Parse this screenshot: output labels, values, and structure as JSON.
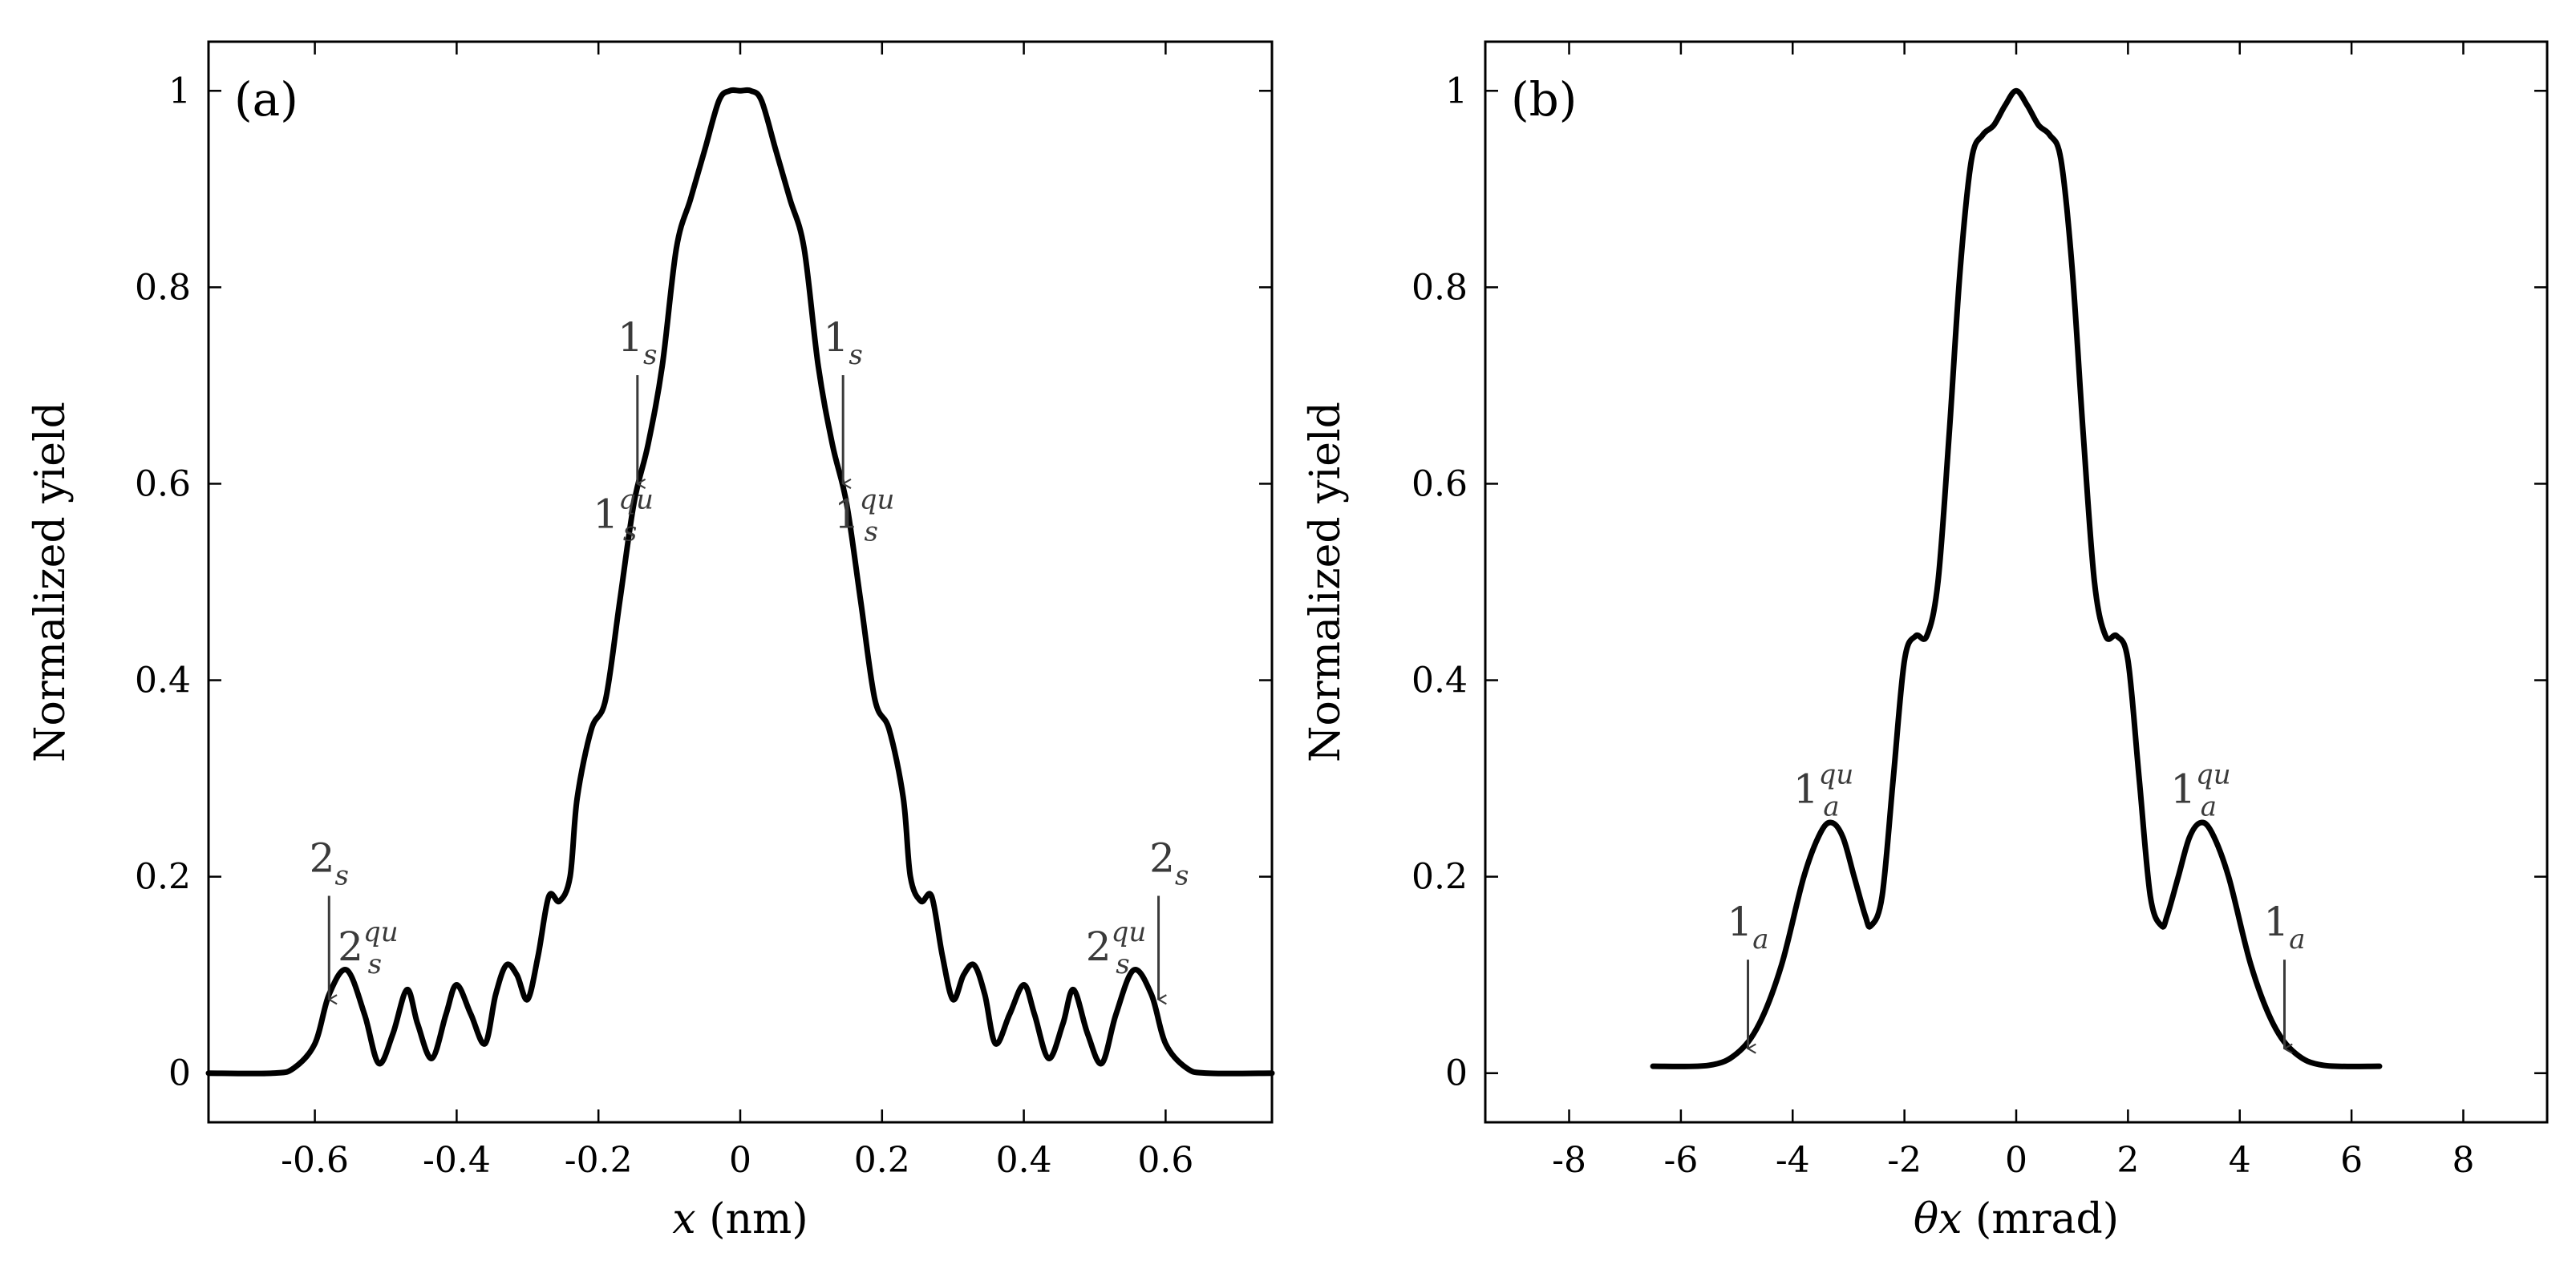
{
  "chart_data": [
    {
      "id": "a",
      "type": "line",
      "panel_label": "(a)",
      "xlabel_var": "x",
      "xlabel_unit": " (nm)",
      "ylabel": "Normalized yield",
      "xlim": [
        -0.75,
        0.75
      ],
      "ylim": [
        -0.05,
        1.05
      ],
      "xticks": [
        -0.6,
        -0.4,
        -0.2,
        0,
        0.2,
        0.4,
        0.6
      ],
      "xtick_labels": [
        "-0.6",
        "-0.4",
        "-0.2",
        "0",
        "0.2",
        "0.4",
        "0.6"
      ],
      "yticks": [
        0,
        0.2,
        0.4,
        0.6,
        0.8,
        1
      ],
      "ytick_labels": [
        "0",
        "0.2",
        "0.4",
        "0.6",
        "0.8",
        "1"
      ],
      "series": [
        {
          "name": "yield",
          "x": [
            -0.75,
            -0.66,
            -0.63,
            -0.6,
            -0.58,
            -0.555,
            -0.53,
            -0.51,
            -0.49,
            -0.47,
            -0.455,
            -0.435,
            -0.415,
            -0.4,
            -0.38,
            -0.36,
            -0.345,
            -0.33,
            -0.315,
            -0.3,
            -0.285,
            -0.27,
            -0.255,
            -0.24,
            -0.23,
            -0.21,
            -0.19,
            -0.17,
            -0.15,
            -0.13,
            -0.11,
            -0.09,
            -0.07,
            -0.05,
            -0.03,
            -0.015,
            0,
            0.015,
            0.03,
            0.05,
            0.07,
            0.09,
            0.11,
            0.13,
            0.15,
            0.17,
            0.19,
            0.21,
            0.23,
            0.24,
            0.255,
            0.27,
            0.285,
            0.3,
            0.315,
            0.33,
            0.345,
            0.36,
            0.38,
            0.4,
            0.415,
            0.435,
            0.455,
            0.47,
            0.49,
            0.51,
            0.53,
            0.555,
            0.58,
            0.6,
            0.63,
            0.66,
            0.75
          ],
          "y": [
            0,
            0,
            0.005,
            0.03,
            0.08,
            0.105,
            0.06,
            0.01,
            0.04,
            0.085,
            0.05,
            0.015,
            0.06,
            0.09,
            0.06,
            0.03,
            0.08,
            0.11,
            0.1,
            0.075,
            0.12,
            0.18,
            0.175,
            0.2,
            0.28,
            0.35,
            0.38,
            0.48,
            0.58,
            0.64,
            0.72,
            0.84,
            0.89,
            0.94,
            0.99,
            1.0,
            1.0,
            1.0,
            0.99,
            0.94,
            0.89,
            0.84,
            0.72,
            0.64,
            0.58,
            0.48,
            0.38,
            0.35,
            0.28,
            0.2,
            0.175,
            0.18,
            0.12,
            0.075,
            0.1,
            0.11,
            0.08,
            0.03,
            0.06,
            0.09,
            0.06,
            0.015,
            0.05,
            0.085,
            0.04,
            0.01,
            0.06,
            0.105,
            0.08,
            0.03,
            0.005,
            0,
            0
          ]
        }
      ],
      "annotations": [
        {
          "base": "1",
          "sub": "s",
          "sup": "",
          "x": -0.145,
          "y": 0.735,
          "arrow_tip": [
            -0.145,
            0.6
          ]
        },
        {
          "base": "1",
          "sub": "s",
          "sup": "qu",
          "x": -0.165,
          "y": 0.555,
          "arrow_tip": null
        },
        {
          "base": "1",
          "sub": "s",
          "sup": "",
          "x": 0.145,
          "y": 0.735,
          "arrow_tip": [
            0.145,
            0.6
          ]
        },
        {
          "base": "1",
          "sub": "s",
          "sup": "qu",
          "x": 0.175,
          "y": 0.555,
          "arrow_tip": null
        },
        {
          "base": "2",
          "sub": "s",
          "sup": "",
          "x": -0.58,
          "y": 0.205,
          "arrow_tip": [
            -0.58,
            0.075
          ]
        },
        {
          "base": "2",
          "sub": "s",
          "sup": "qu",
          "x": -0.525,
          "y": 0.115,
          "arrow_tip": null
        },
        {
          "base": "2",
          "sub": "s",
          "sup": "",
          "x": 0.605,
          "y": 0.205,
          "arrow_tip": [
            0.59,
            0.075
          ]
        },
        {
          "base": "2",
          "sub": "s",
          "sup": "qu",
          "x": 0.53,
          "y": 0.115,
          "arrow_tip": null
        }
      ]
    },
    {
      "id": "b",
      "type": "line",
      "panel_label": "(b)",
      "xlabel_var": "θx",
      "xlabel_unit": " (mrad)",
      "ylabel": "Normalized yield",
      "xlim": [
        -9.5,
        9.5
      ],
      "ylim": [
        -0.05,
        1.05
      ],
      "xticks": [
        -8,
        -6,
        -4,
        -2,
        0,
        2,
        4,
        6,
        8
      ],
      "xtick_labels": [
        "-8",
        "-6",
        "-4",
        "-2",
        "0",
        "2",
        "4",
        "6",
        "8"
      ],
      "yticks": [
        0,
        0.2,
        0.4,
        0.6,
        0.8,
        1
      ],
      "ytick_labels": [
        "0",
        "0.2",
        "0.4",
        "0.6",
        "0.8",
        "1"
      ],
      "series": [
        {
          "name": "yield",
          "x": [
            -6.5,
            -5.5,
            -5.0,
            -4.6,
            -4.2,
            -3.8,
            -3.5,
            -3.3,
            -3.1,
            -2.9,
            -2.7,
            -2.6,
            -2.4,
            -2.2,
            -2.0,
            -1.8,
            -1.6,
            -1.4,
            -1.2,
            -1.0,
            -0.8,
            -0.6,
            -0.4,
            -0.2,
            0,
            0.2,
            0.4,
            0.6,
            0.8,
            1.0,
            1.2,
            1.4,
            1.6,
            1.8,
            2.0,
            2.2,
            2.4,
            2.6,
            2.7,
            2.9,
            3.1,
            3.3,
            3.5,
            3.8,
            4.2,
            4.6,
            5.0,
            5.5,
            6.5
          ],
          "y": [
            0.007,
            0.008,
            0.02,
            0.05,
            0.11,
            0.2,
            0.245,
            0.255,
            0.24,
            0.2,
            0.16,
            0.15,
            0.18,
            0.3,
            0.42,
            0.445,
            0.445,
            0.5,
            0.65,
            0.82,
            0.93,
            0.955,
            0.965,
            0.985,
            1.0,
            0.985,
            0.965,
            0.955,
            0.93,
            0.82,
            0.65,
            0.5,
            0.445,
            0.445,
            0.42,
            0.3,
            0.18,
            0.15,
            0.16,
            0.2,
            0.24,
            0.255,
            0.245,
            0.2,
            0.11,
            0.05,
            0.02,
            0.008,
            0.007
          ]
        }
      ],
      "annotations": [
        {
          "base": "1",
          "sub": "a",
          "sup": "qu",
          "x": -3.45,
          "y": 0.275,
          "arrow_tip": null
        },
        {
          "base": "1",
          "sub": "a",
          "sup": "",
          "x": -4.8,
          "y": 0.14,
          "arrow_tip": [
            -4.8,
            0.025
          ]
        },
        {
          "base": "1",
          "sub": "a",
          "sup": "qu",
          "x": 3.3,
          "y": 0.275,
          "arrow_tip": null
        },
        {
          "base": "1",
          "sub": "a",
          "sup": "",
          "x": 4.8,
          "y": 0.14,
          "arrow_tip": [
            4.8,
            0.025
          ]
        }
      ]
    }
  ]
}
